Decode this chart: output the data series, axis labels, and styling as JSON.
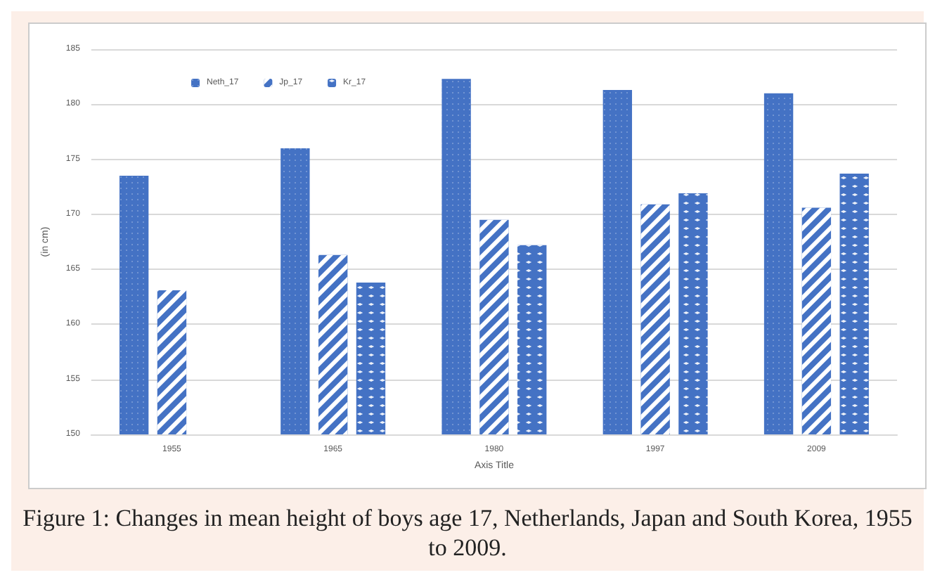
{
  "chart_data": {
    "type": "bar",
    "categories": [
      "1955",
      "1965",
      "1980",
      "1997",
      "2009"
    ],
    "series": [
      {
        "name": "Neth_17",
        "color": "#4472c4",
        "values": [
          173.5,
          176.0,
          182.3,
          181.3,
          181.0
        ]
      },
      {
        "name": "Jp_17",
        "color": "#4472c4",
        "values": [
          163.1,
          166.3,
          169.5,
          170.9,
          170.6
        ]
      },
      {
        "name": "Kr_17",
        "color": "#4472c4",
        "values": [
          null,
          163.8,
          167.2,
          171.9,
          173.7
        ]
      }
    ],
    "ylim": [
      150,
      185
    ],
    "yticks": [
      150,
      155,
      160,
      165,
      170,
      175,
      180,
      185
    ],
    "ylabel": "(in cm)",
    "xlabel": "Axis Title",
    "grid": "y",
    "legend": "top",
    "annotations": [
      "Figure 1: Changes in mean height of boys age 17, Netherlands, Japan and South Korea, 1955 to 2009."
    ]
  }
}
